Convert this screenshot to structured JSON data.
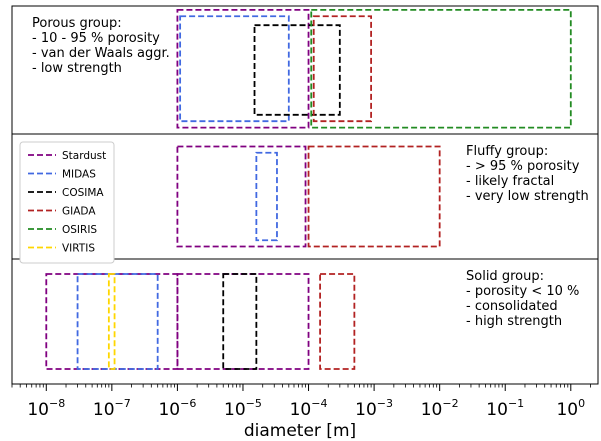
{
  "chart_data": {
    "type": "range-boxes",
    "xscale": "log",
    "xlabel": "diameter [m]",
    "xlim": [
      3e-09,
      2.6
    ],
    "xticks": [
      {
        "value": 1e-08,
        "base": "10",
        "exp": "−8"
      },
      {
        "value": 1e-07,
        "base": "10",
        "exp": "−7"
      },
      {
        "value": 1e-06,
        "base": "10",
        "exp": "−6"
      },
      {
        "value": 1e-05,
        "base": "10",
        "exp": "−5"
      },
      {
        "value": 0.0001,
        "base": "10",
        "exp": "−4"
      },
      {
        "value": 0.001,
        "base": "10",
        "exp": "−3"
      },
      {
        "value": 0.01,
        "base": "10",
        "exp": "−2"
      },
      {
        "value": 0.1,
        "base": "10",
        "exp": "−1"
      },
      {
        "value": 1,
        "base": "10",
        "exp": "0"
      }
    ],
    "instruments": [
      {
        "key": "stardust",
        "name": "Stardust",
        "color": "#800080"
      },
      {
        "key": "midas",
        "name": "MIDAS",
        "color": "#4169e1"
      },
      {
        "key": "cosima",
        "name": "COSIMA",
        "color": "#000000"
      },
      {
        "key": "giada",
        "name": "GIADA",
        "color": "#b22222"
      },
      {
        "key": "osiris",
        "name": "OSIRIS",
        "color": "#228b22"
      },
      {
        "key": "virtis",
        "name": "VIRTIS",
        "color": "#ffd700"
      }
    ],
    "legend_position": "upper-left of middle panel",
    "panels": [
      {
        "key": "porous",
        "annotation": [
          "Porous group:",
          "- 10 - 95 % porosity",
          "- van der Waals aggr.",
          "- low strength"
        ],
        "annotation_position": "top-left",
        "boxes": [
          {
            "instrument": "stardust",
            "x": [
              1e-06,
              0.0001
            ],
            "y": [
              0.03,
              0.95
            ]
          },
          {
            "instrument": "midas",
            "x": [
              1.1e-06,
              5e-05
            ],
            "y": [
              0.08,
              0.9
            ]
          },
          {
            "instrument": "cosima",
            "x": [
              1.5e-05,
              0.0003
            ],
            "y": [
              0.15,
              0.85
            ]
          },
          {
            "instrument": "giada",
            "x": [
              0.00012,
              0.0009
            ],
            "y": [
              0.08,
              0.9
            ]
          },
          {
            "instrument": "osiris",
            "x": [
              0.00011,
              1.0
            ],
            "y": [
              0.03,
              0.95
            ]
          }
        ]
      },
      {
        "key": "fluffy",
        "annotation": [
          "Fluffy group:",
          "- > 95 % porosity",
          "- likely fractal",
          "- very low strength"
        ],
        "annotation_position": "top-right",
        "boxes": [
          {
            "instrument": "stardust",
            "x": [
              1e-06,
              9e-05
            ],
            "y": [
              0.1,
              0.9
            ]
          },
          {
            "instrument": "midas",
            "x": [
              1.6e-05,
              3.3e-05
            ],
            "y": [
              0.15,
              0.85
            ]
          },
          {
            "instrument": "giada",
            "x": [
              0.0001,
              0.01
            ],
            "y": [
              0.1,
              0.9
            ]
          }
        ]
      },
      {
        "key": "solid",
        "annotation": [
          "Solid group:",
          "- porosity < 10 %",
          "- consolidated",
          "- high strength"
        ],
        "annotation_position": "top-right",
        "boxes": [
          {
            "instrument": "stardust",
            "x": [
              1e-08,
              1e-06
            ],
            "y": [
              0.12,
              0.88
            ]
          },
          {
            "instrument": "stardust",
            "x": [
              1e-06,
              0.0001
            ],
            "y": [
              0.12,
              0.88
            ]
          },
          {
            "instrument": "midas",
            "x": [
              3e-08,
              5e-07
            ],
            "y": [
              0.12,
              0.88
            ]
          },
          {
            "instrument": "virtis",
            "x": [
              9e-08,
              1.1e-07
            ],
            "y": [
              0.12,
              0.88
            ]
          },
          {
            "instrument": "cosima",
            "x": [
              5e-06,
              1.6e-05
            ],
            "y": [
              0.12,
              0.88
            ]
          },
          {
            "instrument": "giada",
            "x": [
              0.00015,
              0.0005
            ],
            "y": [
              0.12,
              0.88
            ]
          }
        ]
      }
    ]
  }
}
